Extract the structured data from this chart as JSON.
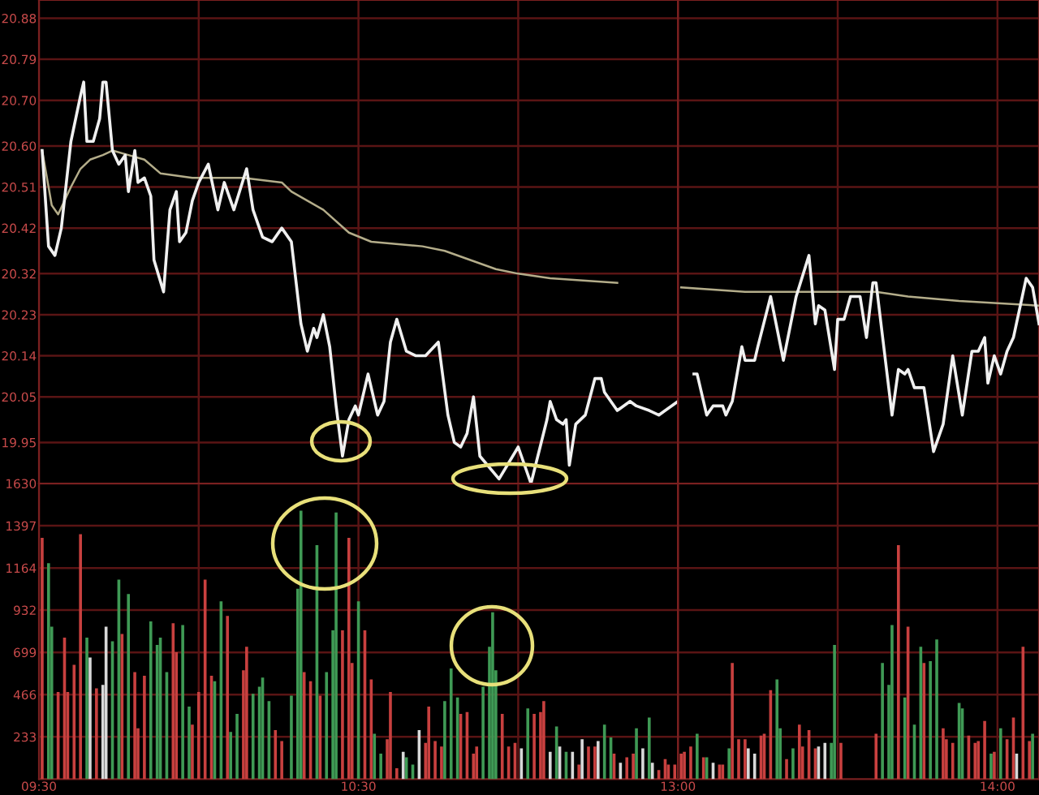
{
  "chart_data": [
    {
      "type": "line",
      "xlim": [
        9.5,
        11.5
      ],
      "ylim": [
        19.86,
        20.92
      ],
      "grid": true,
      "tick_labels": "y",
      "xticks": [
        9.5,
        10,
        10.5,
        11
      ],
      "yticks": [
        20.88,
        20.79,
        {
          "value": 20.7,
          "label": "20.70"
        },
        {
          "value": 20.6,
          "label": "20.60"
        },
        20.51,
        20.42,
        20.32,
        20.23,
        20.14,
        20.05,
        19.95
      ],
      "series": [
        {
          "color": "#f0f0f0",
          "x": [
            9.51,
            9.53,
            9.55,
            9.57,
            9.6,
            9.63,
            9.64,
            9.65,
            9.67,
            9.69,
            9.7,
            9.71,
            9.73,
            9.75,
            9.77,
            9.78,
            9.8,
            9.81,
            9.83,
            9.85,
            9.86,
            9.89,
            9.91,
            9.93,
            9.94,
            9.96,
            9.98,
            10.0,
            10.03,
            10.06,
            10.08,
            10.11,
            10.15,
            10.17,
            10.2,
            10.23,
            10.26,
            10.29,
            10.32,
            10.34,
            10.36,
            10.37,
            10.39,
            10.41,
            10.43,
            10.45,
            10.47,
            10.49,
            10.5,
            10.53,
            10.56,
            10.58,
            10.6,
            10.62,
            10.65,
            10.68,
            10.71,
            10.75,
            10.78,
            10.8,
            10.82,
            10.84,
            10.86,
            10.88,
            10.94,
            11.0,
            11.04,
            11.09,
            11.1,
            11.12,
            11.14,
            11.15,
            11.16,
            11.18,
            11.21,
            11.24,
            11.26,
            11.27,
            11.31,
            11.35,
            11.37,
            11.41,
            11.44,
            11.5
          ],
          "values": [
            20.59,
            20.38,
            20.36,
            20.42,
            20.61,
            20.71,
            20.74,
            20.61,
            20.61,
            20.66,
            20.74,
            20.74,
            20.59,
            20.56,
            20.58,
            20.5,
            20.59,
            20.52,
            20.53,
            20.49,
            20.35,
            20.28,
            20.46,
            20.5,
            20.39,
            20.41,
            20.48,
            20.52,
            20.56,
            20.46,
            20.52,
            20.46,
            20.55,
            20.46,
            20.4,
            20.39,
            20.42,
            20.39,
            20.21,
            20.15,
            20.2,
            20.18,
            20.23,
            20.16,
            20.03,
            19.92,
            20.0,
            20.03,
            20.01,
            20.1,
            20.01,
            20.04,
            20.17,
            20.22,
            20.15,
            20.14,
            20.14,
            20.17,
            20.01,
            19.95,
            19.94,
            19.97,
            20.05,
            19.92,
            19.87,
            19.94,
            19.86,
            20.0,
            20.04,
            20.0,
            19.99,
            20.0,
            19.9,
            19.99,
            20.01,
            20.09,
            20.09,
            20.06,
            20.02,
            20.04,
            20.03,
            20.02,
            20.01,
            20.04
          ]
        },
        {
          "color": "#b4ad8a",
          "x": [
            9.51,
            9.54,
            9.56,
            9.6,
            9.63,
            9.66,
            9.7,
            9.73,
            9.78,
            9.83,
            9.88,
            9.98,
            10.14,
            10.26,
            10.29,
            10.34,
            10.39,
            10.47,
            10.54,
            10.7,
            10.77,
            10.85,
            10.93,
            11.0,
            11.1,
            11.31
          ],
          "values": [
            20.59,
            20.47,
            20.45,
            20.51,
            20.55,
            20.57,
            20.58,
            20.59,
            20.58,
            20.57,
            20.54,
            20.53,
            20.53,
            20.52,
            20.5,
            20.48,
            20.46,
            20.41,
            20.39,
            20.38,
            20.37,
            20.35,
            20.33,
            20.32,
            20.31,
            20.3
          ]
        }
      ]
    },
    {
      "type": "line",
      "xlim": [
        13,
        14.13
      ],
      "ylim": [
        19.86,
        20.92
      ],
      "grid": true,
      "tick_labels": false,
      "xticks": [
        13,
        13.5,
        14
      ],
      "yticks": [
        20.88,
        20.79,
        20.7,
        20.6,
        20.51,
        20.42,
        20.32,
        20.23,
        20.14,
        20.05,
        19.95
      ],
      "series": [
        {
          "color": "#f0f0f0",
          "x": [
            13.05,
            13.06,
            13.09,
            13.11,
            13.14,
            13.15,
            13.17,
            13.2,
            13.21,
            13.24,
            13.25,
            13.29,
            13.33,
            13.37,
            13.41,
            13.43,
            13.44,
            13.46,
            13.49,
            13.5,
            13.52,
            13.54,
            13.57,
            13.59,
            13.61,
            13.62,
            13.67,
            13.69,
            13.71,
            13.72,
            13.74,
            13.77,
            13.8,
            13.83,
            13.86,
            13.89,
            13.92,
            13.94,
            13.96,
            13.97,
            13.99,
            14.01,
            14.03,
            14.05,
            14.09,
            14.11,
            14.13
          ],
          "values": [
            20.1,
            20.1,
            20.01,
            20.03,
            20.03,
            20.01,
            20.04,
            20.16,
            20.13,
            20.13,
            20.16,
            20.27,
            20.13,
            20.27,
            20.36,
            20.21,
            20.25,
            20.24,
            20.11,
            20.22,
            20.22,
            20.27,
            20.27,
            20.18,
            20.3,
            20.3,
            20.01,
            20.11,
            20.1,
            20.11,
            20.07,
            20.07,
            19.93,
            19.99,
            20.14,
            20.01,
            20.15,
            20.15,
            20.18,
            20.08,
            20.14,
            20.1,
            20.15,
            20.18,
            20.31,
            20.29,
            20.21
          ]
        },
        {
          "color": "#b4ad8a",
          "x": [
            13.01,
            13.21,
            13.42,
            13.62,
            13.72,
            13.88,
            14.13
          ],
          "values": [
            20.29,
            20.28,
            20.28,
            20.28,
            20.27,
            20.26,
            20.25
          ]
        }
      ]
    },
    {
      "type": "bar",
      "xlim": [
        9.5,
        11.5
      ],
      "ylim": [
        0,
        1630
      ],
      "grid": true,
      "xticks": [
        {
          "value": 9.5,
          "label": "09:30"
        },
        {
          "value": 10,
          "label": null
        },
        {
          "value": 10.5,
          "label": "10:30"
        },
        {
          "value": 11,
          "label": null
        }
      ],
      "yticks": [
        233,
        466,
        699,
        932,
        1164,
        1397,
        1630
      ],
      "series": [
        {
          "color": "#c8403f",
          "x": [
            9.51,
            9.56,
            9.58,
            9.59,
            9.61,
            9.63,
            9.68,
            9.76,
            9.8,
            9.81,
            9.83,
            9.92,
            9.93,
            9.98,
            10.0,
            10.02,
            10.04,
            10.09,
            10.14,
            10.15,
            10.24,
            10.26,
            10.33,
            10.35,
            10.38,
            10.45,
            10.47,
            10.48,
            10.52,
            10.54,
            10.59,
            10.6,
            10.62,
            10.71,
            10.72,
            10.74,
            10.76,
            10.82,
            10.84,
            10.86,
            10.87,
            10.95,
            10.97,
            10.99,
            11.05,
            11.07,
            11.08,
            11.19,
            11.22,
            11.24,
            11.3,
            11.34,
            11.36,
            11.44,
            11.46,
            11.47,
            11.49
          ],
          "values": [
            1330,
            480,
            780,
            480,
            630,
            1350,
            500,
            800,
            590,
            280,
            570,
            860,
            700,
            300,
            480,
            1100,
            570,
            900,
            600,
            730,
            270,
            210,
            590,
            540,
            460,
            820,
            1330,
            640,
            820,
            550,
            220,
            480,
            60,
            200,
            400,
            210,
            180,
            360,
            370,
            140,
            180,
            360,
            180,
            200,
            360,
            370,
            430,
            80,
            180,
            180,
            140,
            120,
            140,
            50,
            110,
            80,
            80
          ]
        },
        {
          "color": "#3f9a55",
          "x": [
            9.53,
            9.54,
            9.65,
            9.73,
            9.75,
            9.78,
            9.85,
            9.87,
            9.88,
            9.9,
            9.95,
            9.97,
            10.05,
            10.07,
            10.1,
            10.12,
            10.17,
            10.19,
            10.2,
            10.22,
            10.29,
            10.31,
            10.32,
            10.37,
            10.4,
            10.42,
            10.43,
            10.5,
            10.55,
            10.57,
            10.65,
            10.67,
            10.77,
            10.79,
            10.81,
            10.89,
            10.91,
            10.92,
            10.93,
            11.03,
            11.12,
            11.15,
            11.27,
            11.29,
            11.37,
            11.41
          ],
          "values": [
            1190,
            840,
            780,
            760,
            1100,
            1020,
            870,
            740,
            780,
            590,
            850,
            400,
            540,
            980,
            260,
            360,
            470,
            510,
            560,
            430,
            460,
            1050,
            1480,
            1290,
            590,
            820,
            1470,
            980,
            250,
            140,
            120,
            80,
            430,
            610,
            450,
            510,
            730,
            920,
            600,
            390,
            290,
            150,
            300,
            230,
            280,
            340
          ]
        },
        {
          "color": "#d8d8d8",
          "x": [
            9.66,
            9.7,
            9.71,
            10.64,
            10.69,
            11.01,
            11.1,
            11.13,
            11.17,
            11.2,
            11.25,
            11.32,
            11.39,
            11.42
          ],
          "values": [
            670,
            520,
            840,
            150,
            270,
            170,
            150,
            180,
            150,
            220,
            210,
            90,
            170,
            90
          ]
        }
      ]
    },
    {
      "type": "bar",
      "xlim": [
        13,
        14.13
      ],
      "ylim": [
        0,
        1630
      ],
      "grid": true,
      "tick_labels": "x",
      "xticks": [
        {
          "value": 13,
          "label": "13:00"
        },
        {
          "value": 13.5,
          "label": null
        },
        {
          "value": 14,
          "label": "14:00"
        }
      ],
      "yticks": [
        233,
        466,
        699,
        932,
        1164,
        1397,
        1630
      ],
      "series": [
        {
          "color": "#c8403f",
          "x": [
            13.01,
            13.02,
            13.04,
            13.08,
            13.13,
            13.14,
            13.17,
            13.19,
            13.21,
            13.26,
            13.27,
            13.29,
            13.34,
            13.38,
            13.39,
            13.41,
            13.43,
            13.51,
            13.62,
            13.69,
            13.72,
            13.77,
            13.83,
            13.84,
            13.86,
            13.91,
            13.93,
            13.94,
            13.96,
            13.99,
            14.03,
            14.05,
            14.08,
            14.1
          ],
          "values": [
            140,
            150,
            180,
            120,
            80,
            80,
            640,
            220,
            220,
            240,
            250,
            490,
            110,
            300,
            180,
            270,
            170,
            200,
            250,
            1290,
            840,
            640,
            280,
            220,
            200,
            240,
            200,
            210,
            320,
            150,
            220,
            340,
            730,
            210
          ]
        },
        {
          "color": "#3f9a55",
          "x": [
            13.06,
            13.09,
            13.16,
            13.31,
            13.32,
            13.36,
            13.48,
            13.49,
            13.64,
            13.66,
            13.67,
            13.71,
            13.74,
            13.76,
            13.79,
            13.81,
            13.88,
            13.89,
            13.98,
            14.01,
            14.11
          ],
          "values": [
            250,
            120,
            170,
            550,
            280,
            170,
            200,
            740,
            640,
            520,
            850,
            450,
            300,
            730,
            650,
            770,
            420,
            390,
            140,
            280,
            250
          ]
        },
        {
          "color": "#d8d8d8",
          "x": [
            13.11,
            13.22,
            13.24,
            13.44,
            13.46,
            14.06
          ],
          "values": [
            90,
            170,
            140,
            180,
            200,
            140
          ]
        }
      ]
    }
  ]
}
